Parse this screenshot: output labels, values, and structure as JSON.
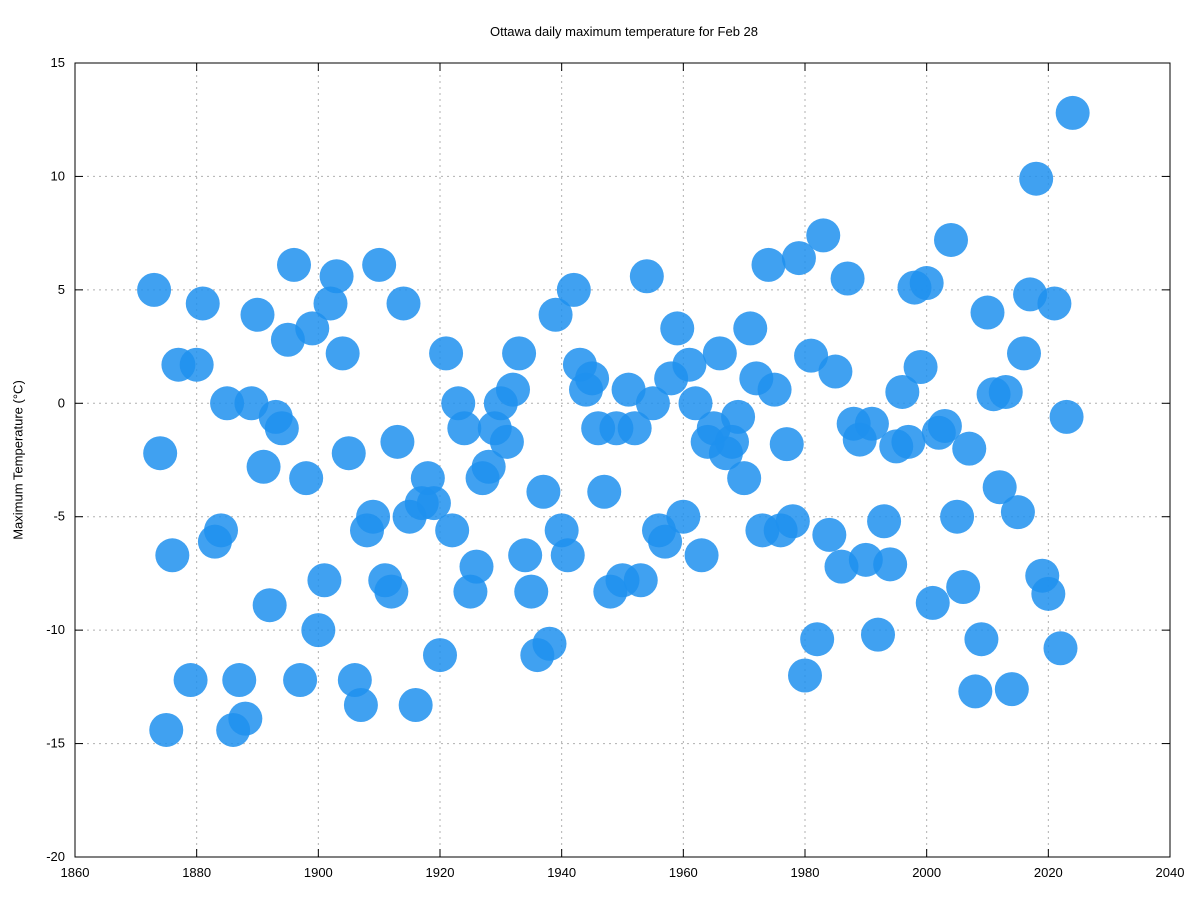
{
  "chart_data": {
    "type": "scatter",
    "title": "Ottawa daily maximum temperature for Feb 28",
    "xlabel": "",
    "ylabel": "Maximum Temperature (°C)",
    "xlim": [
      1860,
      2040
    ],
    "ylim": [
      -20,
      15
    ],
    "xticks": [
      1860,
      1880,
      1900,
      1920,
      1940,
      1960,
      1980,
      2000,
      2020,
      2040
    ],
    "yticks": [
      -20,
      -15,
      -10,
      -5,
      0,
      5,
      10,
      15
    ],
    "grid": true,
    "marker_color": "#1e90ee",
    "series": [
      {
        "points": [
          [
            1873,
            5.0
          ],
          [
            1874,
            -2.2
          ],
          [
            1875,
            -14.4
          ],
          [
            1876,
            -6.7
          ],
          [
            1877,
            1.7
          ],
          [
            1879,
            -12.2
          ],
          [
            1880,
            1.7
          ],
          [
            1881,
            4.4
          ],
          [
            1883,
            -6.1
          ],
          [
            1884,
            -5.6
          ],
          [
            1885,
            0.0
          ],
          [
            1886,
            -14.4
          ],
          [
            1887,
            -12.2
          ],
          [
            1888,
            -13.9
          ],
          [
            1889,
            0.0
          ],
          [
            1890,
            3.9
          ],
          [
            1891,
            -2.8
          ],
          [
            1892,
            -8.9
          ],
          [
            1893,
            -0.6
          ],
          [
            1894,
            -1.1
          ],
          [
            1895,
            2.8
          ],
          [
            1896,
            6.1
          ],
          [
            1897,
            -12.2
          ],
          [
            1898,
            -3.3
          ],
          [
            1899,
            3.3
          ],
          [
            1900,
            -10.0
          ],
          [
            1901,
            -7.8
          ],
          [
            1902,
            4.4
          ],
          [
            1903,
            5.6
          ],
          [
            1904,
            2.2
          ],
          [
            1905,
            -2.2
          ],
          [
            1906,
            -12.2
          ],
          [
            1907,
            -13.3
          ],
          [
            1908,
            -5.6
          ],
          [
            1909,
            -5.0
          ],
          [
            1910,
            6.1
          ],
          [
            1911,
            -7.8
          ],
          [
            1912,
            -8.3
          ],
          [
            1913,
            -1.7
          ],
          [
            1914,
            4.4
          ],
          [
            1915,
            -5.0
          ],
          [
            1916,
            -13.3
          ],
          [
            1917,
            -4.4
          ],
          [
            1918,
            -3.3
          ],
          [
            1919,
            -4.4
          ],
          [
            1920,
            -11.1
          ],
          [
            1921,
            2.2
          ],
          [
            1922,
            -5.6
          ],
          [
            1923,
            0.0
          ],
          [
            1924,
            -1.1
          ],
          [
            1925,
            -8.3
          ],
          [
            1926,
            -7.2
          ],
          [
            1927,
            -3.3
          ],
          [
            1928,
            -2.8
          ],
          [
            1929,
            -1.1
          ],
          [
            1930,
            0.0
          ],
          [
            1931,
            -1.7
          ],
          [
            1932,
            0.6
          ],
          [
            1933,
            2.2
          ],
          [
            1934,
            -6.7
          ],
          [
            1935,
            -8.3
          ],
          [
            1936,
            -11.1
          ],
          [
            1937,
            -3.9
          ],
          [
            1938,
            -10.6
          ],
          [
            1939,
            3.9
          ],
          [
            1940,
            -5.6
          ],
          [
            1941,
            -6.7
          ],
          [
            1942,
            5.0
          ],
          [
            1943,
            1.7
          ],
          [
            1944,
            0.6
          ],
          [
            1945,
            1.1
          ],
          [
            1946,
            -1.1
          ],
          [
            1947,
            -3.9
          ],
          [
            1948,
            -8.3
          ],
          [
            1949,
            -1.1
          ],
          [
            1950,
            -7.8
          ],
          [
            1951,
            0.6
          ],
          [
            1952,
            -1.1
          ],
          [
            1953,
            -7.8
          ],
          [
            1954,
            5.6
          ],
          [
            1955,
            0.0
          ],
          [
            1956,
            -5.6
          ],
          [
            1957,
            -6.1
          ],
          [
            1958,
            1.1
          ],
          [
            1959,
            3.3
          ],
          [
            1960,
            -5.0
          ],
          [
            1961,
            1.7
          ],
          [
            1962,
            0.0
          ],
          [
            1963,
            -6.7
          ],
          [
            1964,
            -1.7
          ],
          [
            1965,
            -1.1
          ],
          [
            1966,
            2.2
          ],
          [
            1967,
            -2.2
          ],
          [
            1968,
            -1.7
          ],
          [
            1969,
            -0.6
          ],
          [
            1970,
            -3.3
          ],
          [
            1971,
            3.3
          ],
          [
            1972,
            1.1
          ],
          [
            1973,
            -5.6
          ],
          [
            1974,
            6.1
          ],
          [
            1975,
            0.6
          ],
          [
            1976,
            -5.6
          ],
          [
            1977,
            -1.8
          ],
          [
            1978,
            -5.2
          ],
          [
            1979,
            6.4
          ],
          [
            1980,
            -12.0
          ],
          [
            1981,
            2.1
          ],
          [
            1982,
            -10.4
          ],
          [
            1983,
            7.4
          ],
          [
            1984,
            -5.8
          ],
          [
            1985,
            1.4
          ],
          [
            1986,
            -7.2
          ],
          [
            1987,
            5.5
          ],
          [
            1988,
            -0.9
          ],
          [
            1989,
            -1.6
          ],
          [
            1990,
            -6.9
          ],
          [
            1991,
            -0.9
          ],
          [
            1992,
            -10.2
          ],
          [
            1993,
            -5.2
          ],
          [
            1994,
            -7.1
          ],
          [
            1995,
            -1.9
          ],
          [
            1996,
            0.5
          ],
          [
            1997,
            -1.7
          ],
          [
            1998,
            5.1
          ],
          [
            1999,
            1.6
          ],
          [
            2000,
            5.3
          ],
          [
            2001,
            -8.8
          ],
          [
            2002,
            -1.3
          ],
          [
            2003,
            -1.0
          ],
          [
            2004,
            7.2
          ],
          [
            2005,
            -5.0
          ],
          [
            2006,
            -8.1
          ],
          [
            2007,
            -2.0
          ],
          [
            2008,
            -12.7
          ],
          [
            2009,
            -10.4
          ],
          [
            2010,
            4.0
          ],
          [
            2011,
            0.4
          ],
          [
            2012,
            -3.7
          ],
          [
            2013,
            0.5
          ],
          [
            2014,
            -12.6
          ],
          [
            2015,
            -4.8
          ],
          [
            2016,
            2.2
          ],
          [
            2017,
            4.8
          ],
          [
            2018,
            9.9
          ],
          [
            2019,
            -7.6
          ],
          [
            2020,
            -8.4
          ],
          [
            2021,
            4.4
          ],
          [
            2022,
            -10.8
          ],
          [
            2023,
            -0.6
          ],
          [
            2024,
            12.8
          ]
        ]
      }
    ]
  }
}
